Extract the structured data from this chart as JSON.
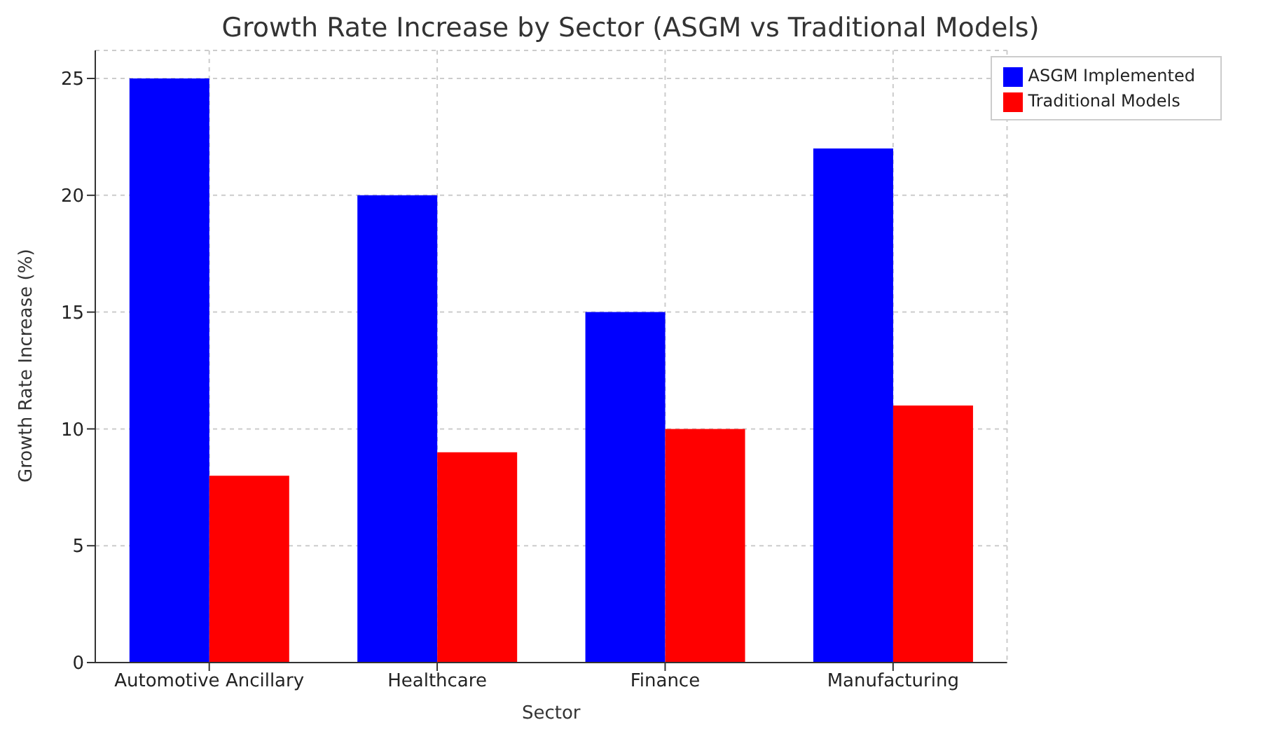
{
  "chart_data": {
    "type": "bar",
    "title": "Growth Rate Increase by Sector (ASGM vs Traditional Models)",
    "xlabel": "Sector",
    "ylabel": "Growth Rate Increase (%)",
    "categories": [
      "Automotive Ancillary",
      "Healthcare",
      "Finance",
      "Manufacturing"
    ],
    "series": [
      {
        "name": "ASGM Implemented",
        "color": "#0000ff",
        "values": [
          25,
          20,
          15,
          22
        ]
      },
      {
        "name": "Traditional Models",
        "color": "#ff0000",
        "values": [
          8,
          9,
          10,
          11
        ]
      }
    ],
    "ylim": [
      0,
      26.2
    ],
    "yticks": [
      0,
      5,
      10,
      15,
      20,
      25
    ],
    "grid": true,
    "legend": "top right"
  }
}
